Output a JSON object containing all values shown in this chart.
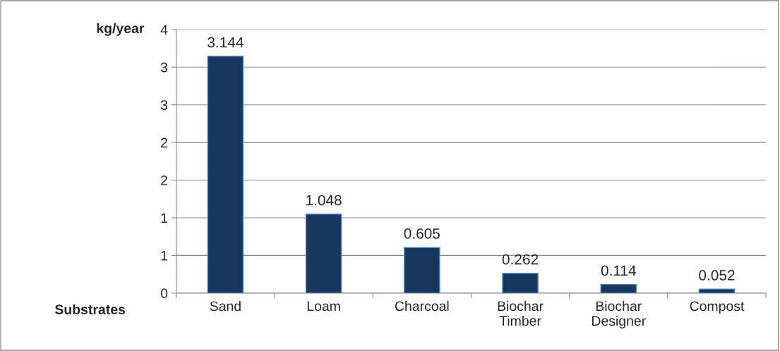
{
  "chart_data": {
    "type": "bar",
    "ylabel": "kg/year",
    "xlabel": "Substrates",
    "categories": [
      "Sand",
      "Loam",
      "Charcoal",
      "Biochar Timber",
      "Biochar Designer",
      "Compost"
    ],
    "values": [
      3.144,
      1.048,
      0.605,
      0.262,
      0.114,
      0.052
    ],
    "color": "#17375e",
    "ylim": [
      0,
      3.5
    ],
    "yticks": [
      0,
      {
        "value": 0.5,
        "label": "1"
      },
      {
        "value": 1,
        "label": "1"
      },
      {
        "value": 1.5,
        "label": "2"
      },
      {
        "value": 2,
        "label": "2"
      },
      {
        "value": 2.5,
        "label": "3"
      },
      {
        "value": 3,
        "label": "3"
      },
      {
        "value": 3.5,
        "label": "4"
      }
    ],
    "grid": "y",
    "data_labels": true
  }
}
